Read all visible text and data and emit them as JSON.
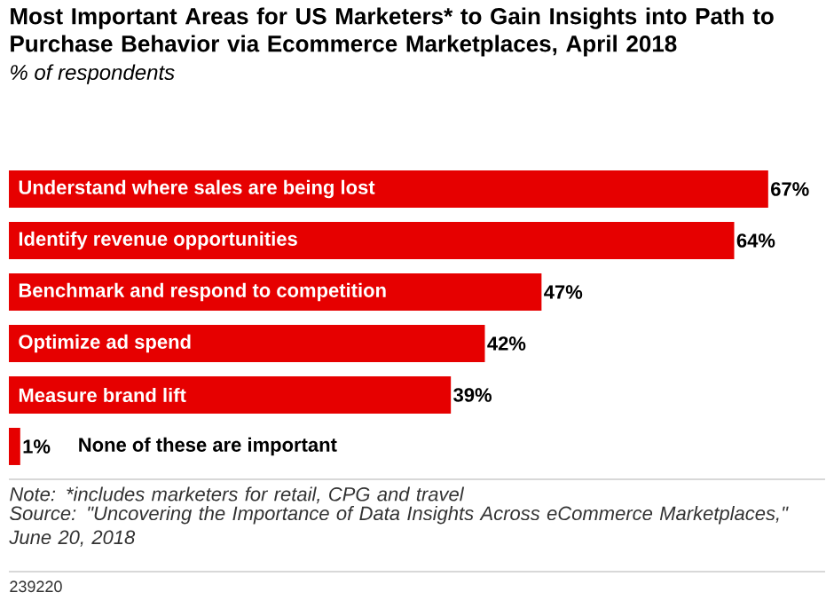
{
  "chart_data": {
    "type": "bar",
    "orientation": "horizontal",
    "title": "Most Important Areas for US Marketers* to Gain Insights into Path to Purchase Behavior via Ecommerce Marketplaces, April 2018",
    "subtitle": "% of respondents",
    "categories": [
      "Understand where sales are being lost",
      "Identify revenue opportunities",
      "Benchmark and respond to competition",
      "Optimize ad spend",
      "Measure brand lift",
      "None of these are important"
    ],
    "values": [
      67,
      64,
      47,
      42,
      39,
      1
    ],
    "value_labels": [
      "67%",
      "64%",
      "47%",
      "42%",
      "39%",
      "1%"
    ],
    "color": "#e60000",
    "annotations": [
      "Note: *includes marketers for retail, CPG and travel",
      "Source: \"Uncovering the Importance of Data Insights Across eCommerce Marketplaces,\" June 20, 2018",
      "239220"
    ]
  }
}
